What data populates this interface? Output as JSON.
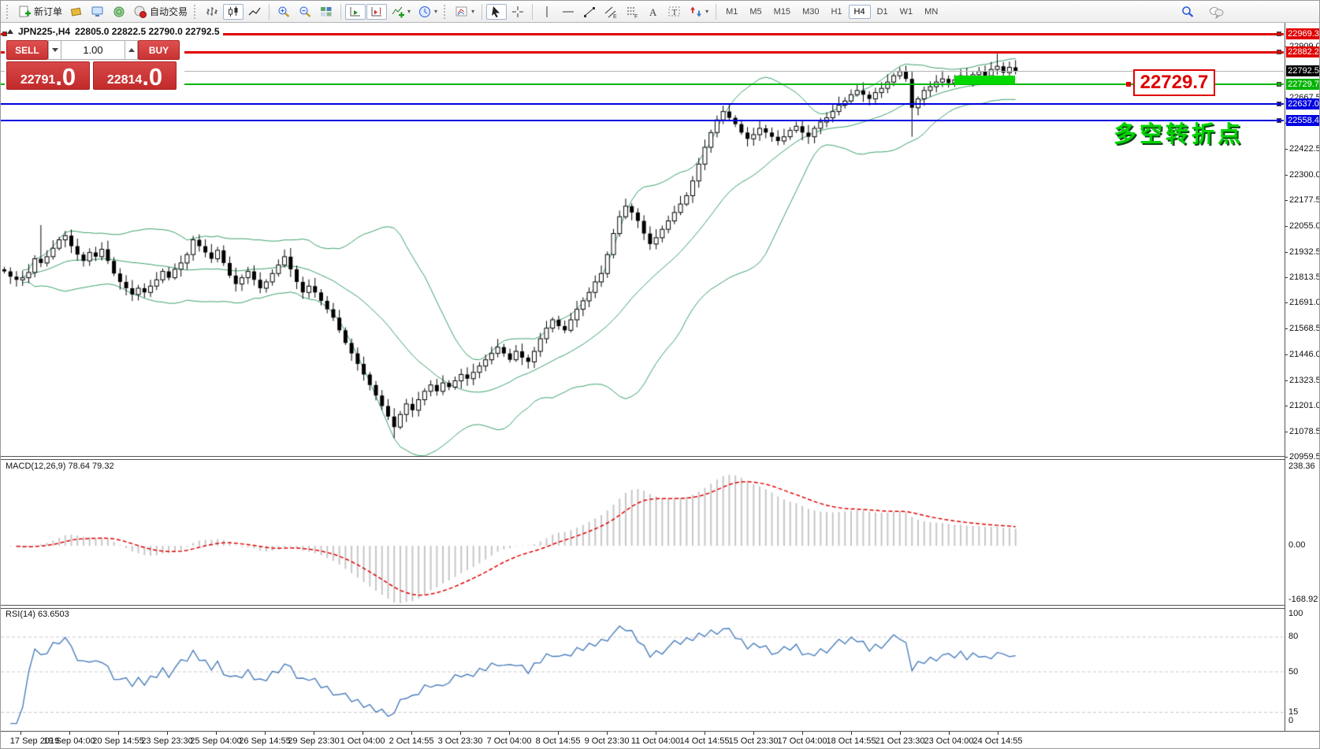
{
  "toolbar": {
    "new_order_label": "新订单",
    "autotrade_label": "自动交易",
    "timeframes": [
      "M1",
      "M5",
      "M15",
      "M30",
      "H1",
      "H4",
      "D1",
      "W1",
      "MN"
    ],
    "active_timeframe": "H4"
  },
  "chart": {
    "title_symbol": "JPN225-,H4",
    "title_ohlc": "22805.0 22822.5 22790.0 22792.5",
    "trade_panel": {
      "sell_label": "SELL",
      "buy_label": "BUY",
      "volume": "1.00",
      "sell_price": "22791",
      "sell_price_frac": ".0",
      "buy_price": "22814",
      "buy_price_frac": ".0"
    },
    "annotation": "多空转折点",
    "callout": "22729.7",
    "levels": [
      {
        "price": 22969.3,
        "label": "22969.3",
        "color": "#e00000",
        "label_bg": "#e00000",
        "thickness": 3
      },
      {
        "price": 22882.2,
        "label": "22882.2",
        "color": "#e00000",
        "label_bg": "#e00000",
        "thickness": 3
      },
      {
        "price": 22792.5,
        "label": "22792.5",
        "color": "#b4b4b4",
        "label_bg": "#000000",
        "thickness": 1
      },
      {
        "price": 22729.7,
        "label": "22729.7",
        "color": "#00b400",
        "label_bg": "#00b400",
        "thickness": 2
      },
      {
        "price": 22637.0,
        "label": "22637.0",
        "color": "#0000e0",
        "label_bg": "#0000e0",
        "thickness": 2
      },
      {
        "price": 22558.4,
        "label": "22558.4",
        "color": "#0000e0",
        "label_bg": "#0000e0",
        "thickness": 2
      }
    ],
    "price_ticks": [
      22909.0,
      22667.5,
      22545.0,
      22422.5,
      22300.0,
      22177.5,
      22055.0,
      21932.5,
      21813.5,
      21691.0,
      21568.5,
      21446.0,
      21323.5,
      21201.0,
      21078.5,
      20959.5
    ],
    "time_labels": [
      "17 Sep 2019",
      "19 Sep 04:00",
      "20 Sep 14:55",
      "23 Sep 23:30",
      "25 Sep 04:00",
      "26 Sep 14:55",
      "29 Sep 23:30",
      "1 Oct 04:00",
      "2 Oct 14:55",
      "3 Oct 23:30",
      "7 Oct 04:00",
      "8 Oct 14:55",
      "9 Oct 23:30",
      "11 Oct 04:00",
      "14 Oct 14:55",
      "15 Oct 23:30",
      "17 Oct 04:00",
      "18 Oct 14:55",
      "21 Oct 23:30",
      "23 Oct 04:00",
      "24 Oct 14:55"
    ]
  },
  "macd": {
    "label": "MACD(12,26,9) 78.64 79.32",
    "axis": {
      "max": "238.36",
      "zero": "0.00",
      "min": "-168.92"
    }
  },
  "rsi": {
    "label": "RSI(14) 63.6503",
    "axis": [
      {
        "label": "100",
        "value": 100
      },
      {
        "label": "80",
        "value": 80
      },
      {
        "label": "50",
        "value": 50
      },
      {
        "label": "15",
        "value": 15
      },
      {
        "label": "0",
        "value": 0
      }
    ],
    "dashed_levels": [
      80,
      50,
      15
    ]
  },
  "chart_data": {
    "type": "candlestick",
    "symbol": "JPN225-",
    "period": "H4",
    "overlays": {
      "bollinger_bands": "(20, 2)"
    },
    "price_axis_range": [
      20959.5,
      22995.0
    ],
    "closes": [
      21840,
      21815,
      21800,
      21810,
      21835,
      21900,
      21880,
      21910,
      21950,
      21990,
      22010,
      21960,
      21920,
      21890,
      21930,
      21910,
      21945,
      21890,
      21830,
      21790,
      21760,
      21730,
      21760,
      21740,
      21770,
      21800,
      21840,
      21810,
      21850,
      21880,
      21920,
      21990,
      21960,
      21930,
      21900,
      21940,
      21880,
      21820,
      21780,
      21810,
      21840,
      21800,
      21760,
      21790,
      21830,
      21870,
      21910,
      21850,
      21790,
      21740,
      21770,
      21740,
      21700,
      21660,
      21620,
      21560,
      21500,
      21450,
      21400,
      21350,
      21300,
      21250,
      21200,
      21150,
      21100,
      21160,
      21210,
      21180,
      21230,
      21270,
      21300,
      21270,
      21310,
      21290,
      21320,
      21350,
      21330,
      21360,
      21390,
      21420,
      21450,
      21480,
      21450,
      21420,
      21460,
      21430,
      21410,
      21460,
      21520,
      21570,
      21610,
      21580,
      21560,
      21610,
      21660,
      21700,
      21740,
      21790,
      21830,
      21920,
      22020,
      22100,
      22150,
      22120,
      22080,
      22020,
      21970,
      22000,
      22040,
      22080,
      22120,
      22160,
      22200,
      22270,
      22350,
      22430,
      22500,
      22560,
      22600,
      22570,
      22540,
      22500,
      22470,
      22490,
      22520,
      22500,
      22480,
      22460,
      22480,
      22510,
      22530,
      22500,
      22480,
      22520,
      22550,
      22570,
      22600,
      22630,
      22650,
      22680,
      22700,
      22680,
      22660,
      22690,
      22710,
      22740,
      22770,
      22790,
      22755,
      22618,
      22660,
      22700,
      22718,
      22740,
      22755,
      22735,
      22750,
      22770,
      22755,
      22775,
      22790,
      22770,
      22800,
      22815,
      22785,
      22810,
      22792.5
    ],
    "special_wicks": {
      "6": {
        "high": 22060
      },
      "64": {
        "low": 21048
      },
      "149": {
        "low": 22480
      },
      "163": {
        "high": 22875
      }
    },
    "highlight_rectangle": {
      "price_top": 22770.0,
      "price_bottom": 22729.7,
      "color": "#00d800"
    }
  }
}
